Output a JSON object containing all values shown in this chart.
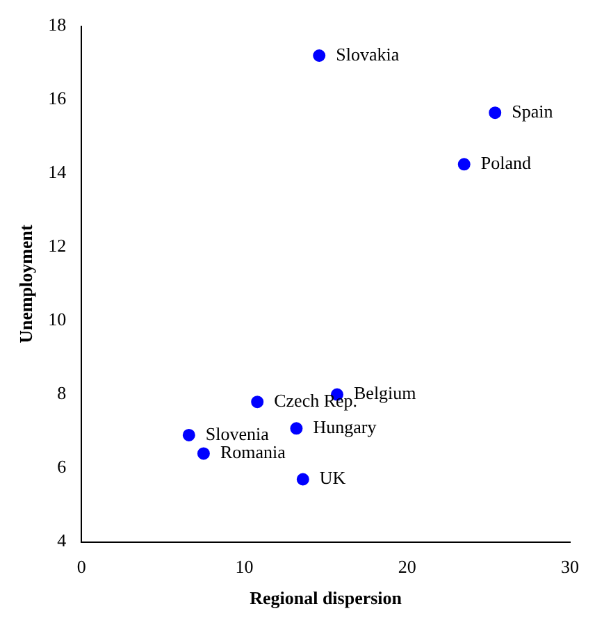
{
  "chart_data": {
    "type": "scatter",
    "xlabel": "Regional dispersion",
    "ylabel": "Unemployment",
    "x": [
      14.6,
      25.4,
      23.5,
      15.7,
      10.8,
      13.2,
      6.6,
      7.5,
      13.6
    ],
    "values": [
      17.2,
      15.65,
      14.25,
      8.0,
      7.8,
      7.08,
      6.9,
      6.4,
      5.7
    ],
    "color": "#0000ff",
    "marker": "circle",
    "grid": false,
    "legend": false,
    "xlim": [
      0,
      30
    ],
    "xticks": [
      0,
      10,
      20,
      30
    ],
    "ylim": [
      4,
      18
    ],
    "yticks": [
      4,
      6,
      8,
      10,
      12,
      14,
      16,
      18
    ],
    "annotations": [
      {
        "text": "Slovakia",
        "x": 14.6,
        "y": 17.2
      },
      {
        "text": "Spain",
        "x": 25.4,
        "y": 15.65
      },
      {
        "text": "Poland",
        "x": 23.5,
        "y": 14.25
      },
      {
        "text": "Belgium",
        "x": 15.7,
        "y": 8.0
      },
      {
        "text": "Czech Rep.",
        "x": 10.8,
        "y": 7.8
      },
      {
        "text": "Hungary",
        "x": 13.2,
        "y": 7.08
      },
      {
        "text": "Slovenia",
        "x": 6.6,
        "y": 6.9
      },
      {
        "text": "Romania",
        "x": 7.5,
        "y": 6.4
      },
      {
        "text": "UK",
        "x": 13.6,
        "y": 5.7
      }
    ]
  }
}
